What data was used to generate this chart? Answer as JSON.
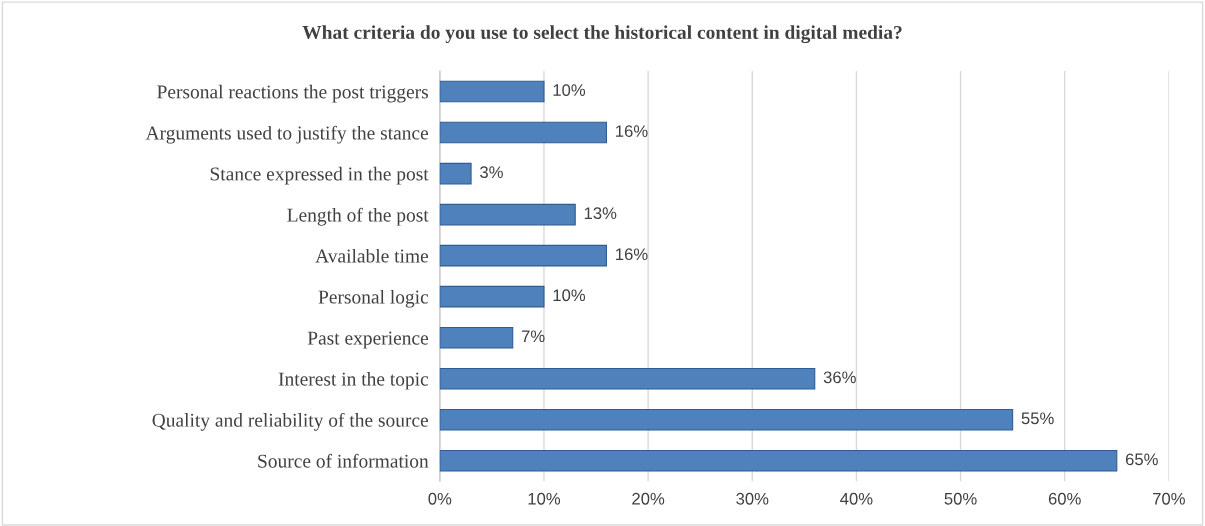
{
  "chart_data": {
    "type": "bar",
    "orientation": "horizontal",
    "title": "What criteria do you use to select the historical content in digital media?",
    "categories": [
      "Personal reactions the post triggers",
      "Arguments used to justify the stance",
      "Stance expressed in the post",
      "Length of the post",
      "Available time",
      "Personal logic",
      "Past experience",
      "Interest in the topic",
      "Quality and reliability of the source",
      "Source of information"
    ],
    "values": [
      10,
      16,
      3,
      13,
      16,
      10,
      7,
      36,
      55,
      65
    ],
    "value_labels": [
      "10%",
      "16%",
      "3%",
      "13%",
      "16%",
      "10%",
      "7%",
      "36%",
      "55%",
      "65%"
    ],
    "color": "#4f81bd",
    "xlim": [
      0,
      70
    ],
    "xticks": [
      {
        "value": 0,
        "label": "0%"
      },
      {
        "value": 10,
        "label": "10%"
      },
      {
        "value": 20,
        "label": "20%"
      },
      {
        "value": 30,
        "label": "30%"
      },
      {
        "value": 40,
        "label": "40%"
      },
      {
        "value": 50,
        "label": "50%"
      },
      {
        "value": 60,
        "label": "60%"
      },
      {
        "value": 70,
        "label": "70%"
      }
    ],
    "grid": "x",
    "legend": false
  }
}
